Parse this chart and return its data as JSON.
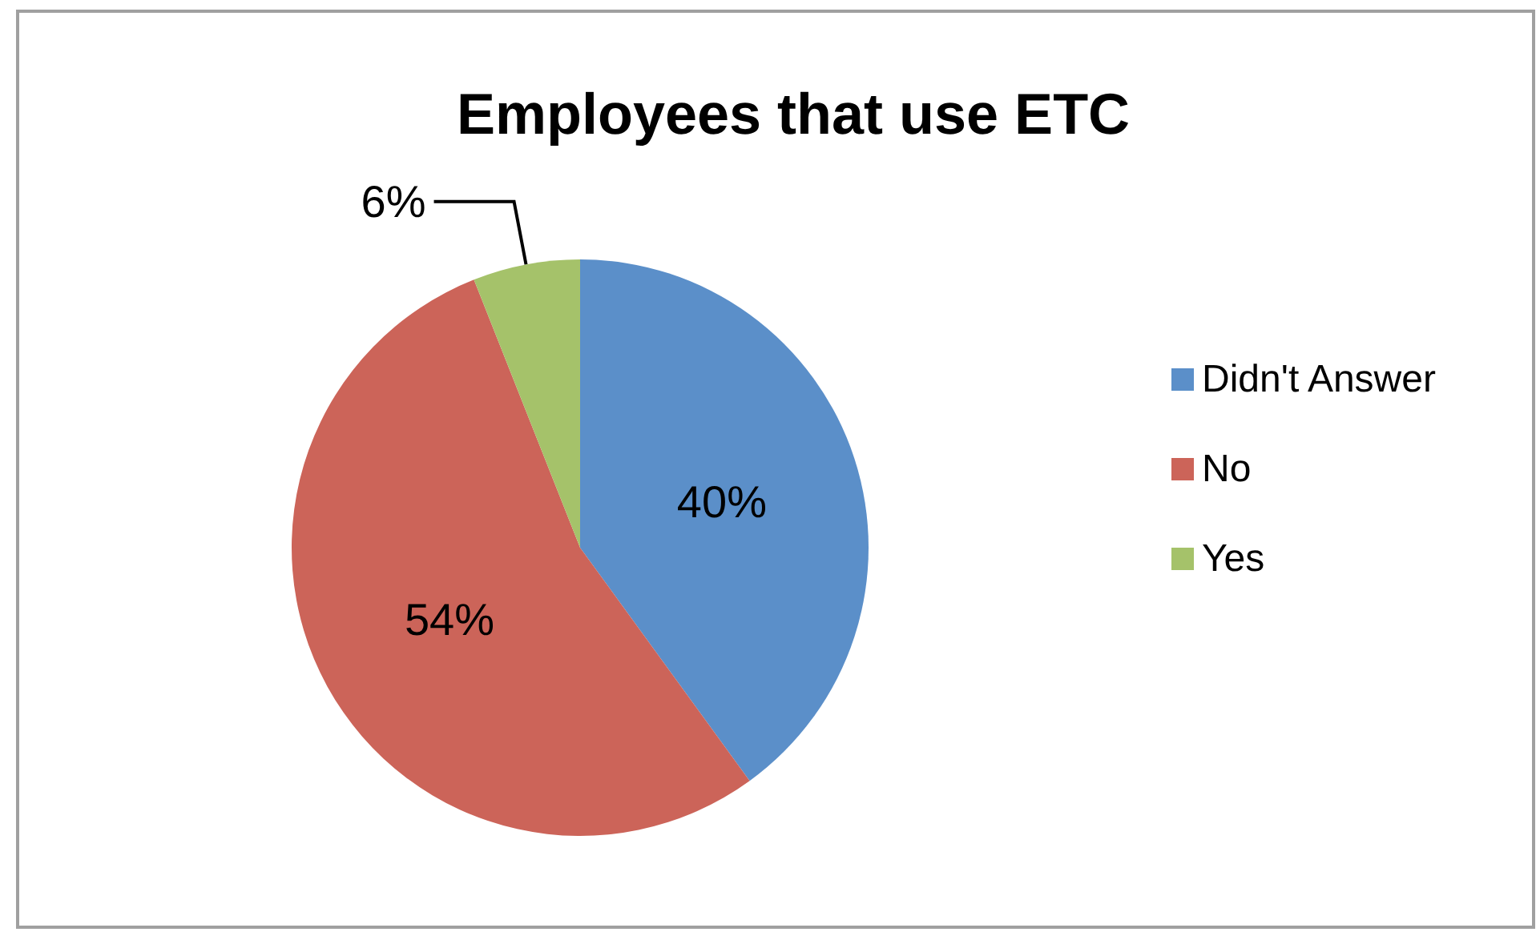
{
  "chart_data": {
    "type": "pie",
    "title": "Employees that use ETC",
    "categories": [
      "Didn't Answer",
      "No",
      "Yes"
    ],
    "values": [
      40,
      54,
      6
    ],
    "colors": [
      "#5b8fc9",
      "#cc6459",
      "#a5c26a"
    ],
    "value_labels": [
      "40%",
      "54%",
      "6%"
    ],
    "legend": "right"
  }
}
